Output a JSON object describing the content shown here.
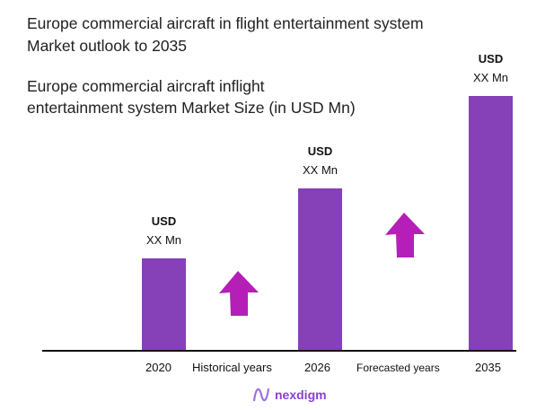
{
  "title_line1": "Europe commercial aircraft in flight entertainment system",
  "title_line2": "Market outlook to 2035",
  "subtitle_line1": "Europe commercial aircraft inflight",
  "subtitle_line2": "entertainment system Market Size (in USD Mn)",
  "chart_data": {
    "type": "bar",
    "title": "Europe commercial aircraft in flight entertainment system Market outlook to 2035",
    "ylabel": "Market Size (in USD Mn)",
    "categories": [
      "2020",
      "2026",
      "2035"
    ],
    "relative_values": [
      1.0,
      1.76,
      2.77
    ],
    "data_labels": [
      {
        "currency": "USD",
        "value": "XX Mn"
      },
      {
        "currency": "USD",
        "value": "XX Mn"
      },
      {
        "currency": "USD",
        "value": "XX Mn"
      }
    ],
    "period_labels": [
      "Historical years",
      "Forecasted years"
    ],
    "bar_color": "#8640b8",
    "arrow_color": "#b51fb8"
  },
  "brand": "nexdigm"
}
